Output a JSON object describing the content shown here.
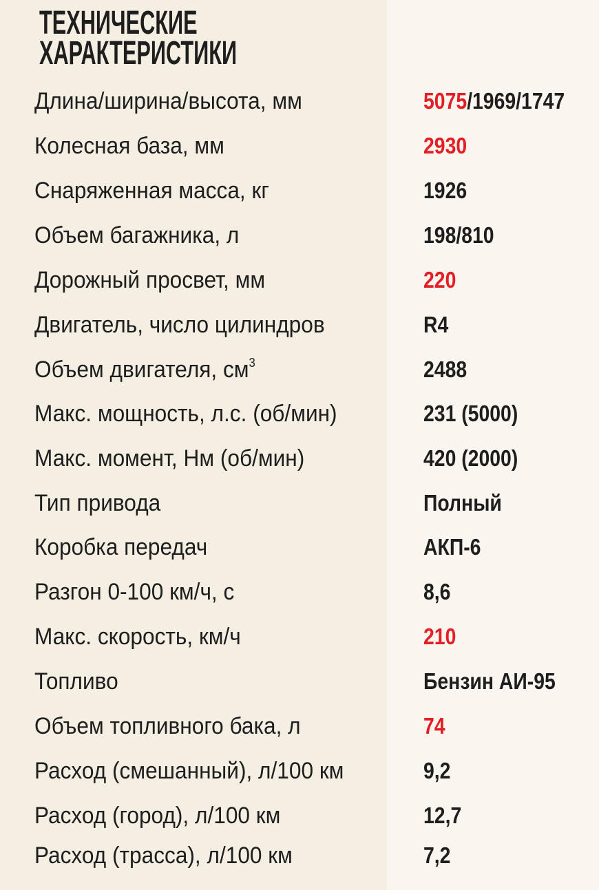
{
  "title": {
    "line1": "ТЕХНИЧЕСКИЕ",
    "line2": "ХАРАКТЕРИСТИКИ"
  },
  "colors": {
    "accent": "#e31e24",
    "text": "#1e1e1e",
    "left_bg": "#f5eee2",
    "right_bg": "#faf6ef"
  },
  "rows": [
    {
      "label": "Длина/ширина/высота, мм",
      "value_red": "5075",
      "value": "/1969/1747"
    },
    {
      "label": "Колесная база, мм",
      "value_red": "2930",
      "value": ""
    },
    {
      "label": "Снаряженная масса, кг",
      "value_red": "",
      "value": "1926"
    },
    {
      "label": "Объем багажника, л",
      "value_red": "",
      "value": "198/810"
    },
    {
      "label": "Дорожный просвет, мм",
      "value_red": "220",
      "value": ""
    },
    {
      "label": "Двигатель, число цилиндров",
      "value_red": "",
      "value": "R4"
    },
    {
      "label": "Объем двигателя, см",
      "label_sup": "3",
      "value_red": "",
      "value": "2488"
    },
    {
      "label": "Макс. мощность, л.с. (об/мин)",
      "value_red": "",
      "value": "231 (5000)"
    },
    {
      "label": "Макс. момент, Нм (об/мин)",
      "value_red": "",
      "value": "420 (2000)"
    },
    {
      "label": "Тип привода",
      "value_red": "",
      "value": "Полный"
    },
    {
      "label": "Коробка передач",
      "value_red": "",
      "value": "АКП-6"
    },
    {
      "label": "Разгон 0-100 км/ч, с",
      "value_red": "",
      "value": "8,6"
    },
    {
      "label": "Макс. скорость, км/ч",
      "value_red": "210",
      "value": ""
    },
    {
      "label": "Топливо",
      "value_red": "",
      "value": "Бензин АИ-95"
    },
    {
      "label": "Объем топливного бака, л",
      "value_red": "74",
      "value": ""
    },
    {
      "label": "Расход (смешанный), л/100 км",
      "value_red": "",
      "value": "9,2"
    },
    {
      "label": "Расход (город), л/100 км",
      "value_red": "",
      "value": "12,7"
    },
    {
      "label": "Расход (трасса), л/100 км",
      "value_red": "",
      "value": "7,2"
    }
  ]
}
